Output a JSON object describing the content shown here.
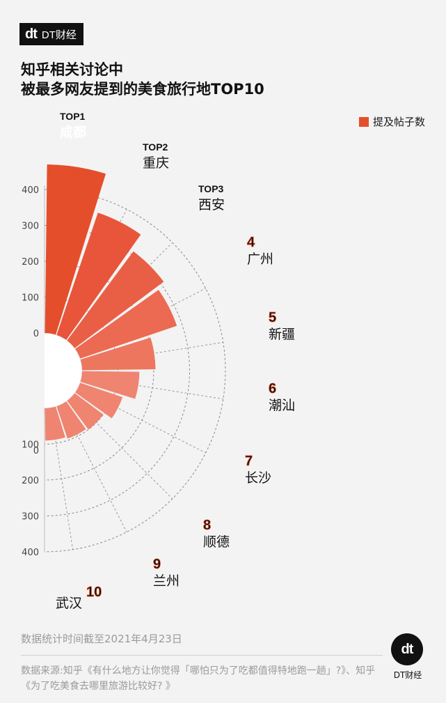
{
  "header": {
    "logo_mark": "dt",
    "logo_brand": "DT财经",
    "title_line1": "知乎相关讨论中",
    "title_line2": "被最多网友提到的美食旅行地TOP10"
  },
  "legend": {
    "label": "提及帖子数",
    "color": "#e54e2b"
  },
  "chart_data": {
    "type": "bar",
    "subtype": "radial-half",
    "categories": [
      "成都",
      "重庆",
      "西安",
      "广州",
      "新疆",
      "潮汕",
      "长沙",
      "顺德",
      "兰州",
      "武汉"
    ],
    "rank_labels": [
      "TOP1",
      "TOP2",
      "TOP3",
      "4",
      "5",
      "6",
      "7",
      "8",
      "9",
      "10"
    ],
    "series": [
      {
        "name": "提及帖子数",
        "values": [
          470,
          360,
          310,
          285,
          205,
          160,
          125,
          100,
          95,
          90
        ]
      }
    ],
    "colors": [
      "#e54e2b",
      "#e8553a",
      "#e95f45",
      "#eb6a51",
      "#ed765f",
      "#ef8470",
      "#ef8470",
      "#ef8470",
      "#ef8470",
      "#ef8470"
    ],
    "axis_ticks_upper": [
      "400",
      "300",
      "200",
      "100",
      "0"
    ],
    "axis_ticks_lower": [
      "0",
      "100",
      "200",
      "300",
      "400"
    ],
    "ylim": [
      0,
      470
    ],
    "grid": true
  },
  "footer": {
    "date_note": "数据统计时间截至2021年4月23日",
    "source": "数据来源:知乎《有什么地方让你觉得「哪怕只为了吃都值得特地跑一趟」?》、知乎《为了吃美食去哪里旅游比较好? 》",
    "badge_mark": "dt",
    "badge_label": "DT财经"
  }
}
